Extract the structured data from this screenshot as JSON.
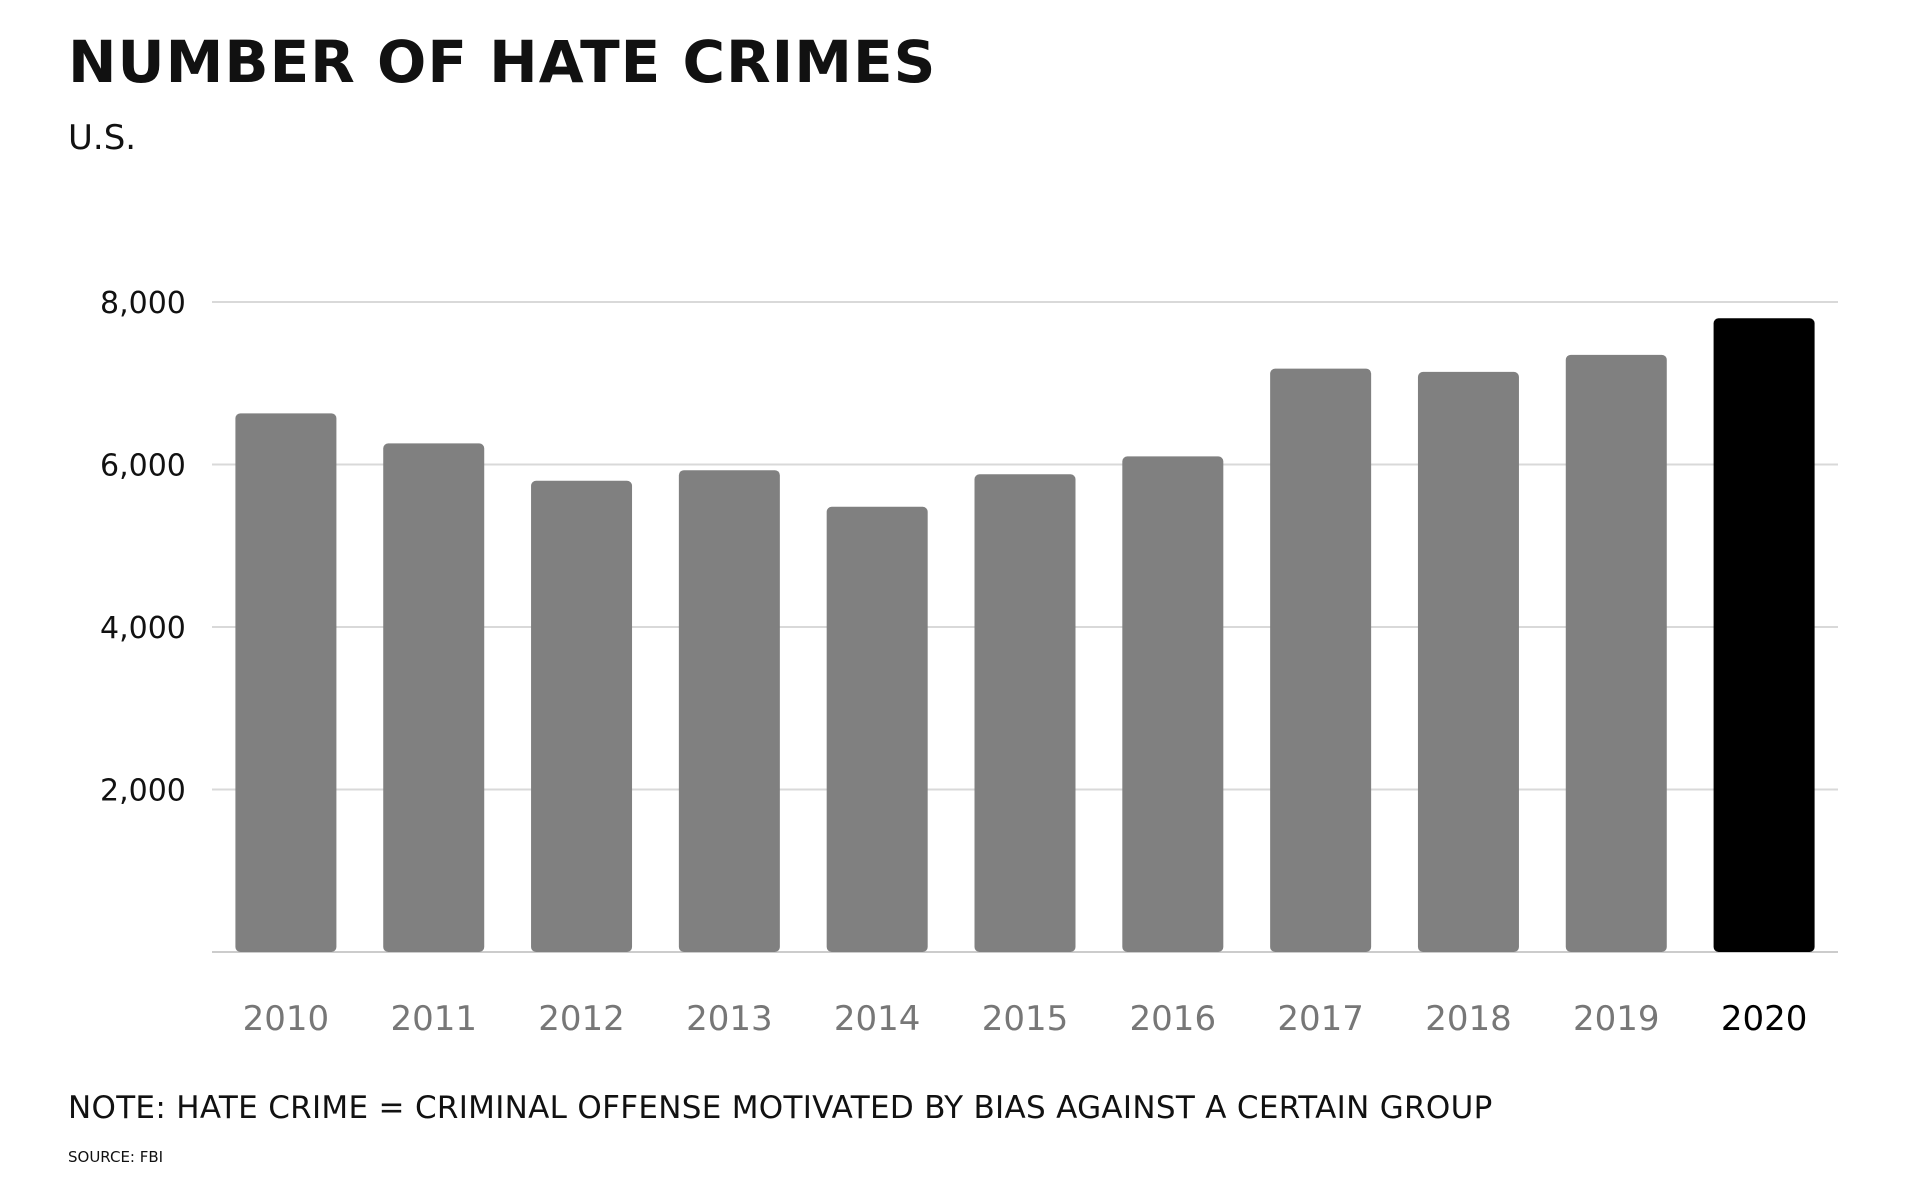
{
  "chart_data": {
    "type": "bar",
    "title": "NUMBER OF HATE CRIMES",
    "subtitle": "U.S.",
    "categories": [
      "2010",
      "2011",
      "2012",
      "2013",
      "2014",
      "2015",
      "2016",
      "2017",
      "2018",
      "2019",
      "2020"
    ],
    "values": [
      6630,
      6260,
      5800,
      5930,
      5480,
      5880,
      6100,
      7180,
      7140,
      7350,
      7800
    ],
    "highlight_category": "2020",
    "colors": {
      "bar": "#808080",
      "highlight_bar": "#000000",
      "grid": "#d9d9d9",
      "baseline": "#cccccc",
      "tick_label": "#111111",
      "category_label": "#777777",
      "highlight_label": "#000000"
    },
    "xlabel": "",
    "ylabel": "",
    "ylim": [
      0,
      8000
    ],
    "y_ticks": [
      2000,
      4000,
      6000,
      8000
    ],
    "y_tick_labels": [
      "2,000",
      "4,000",
      "6,000",
      "8,000"
    ],
    "grid": true,
    "legend": "none",
    "note": "NOTE: HATE CRIME = CRIMINAL OFFENSE MOTIVATED BY BIAS AGAINST A CERTAIN GROUP",
    "source": "SOURCE: FBI"
  }
}
